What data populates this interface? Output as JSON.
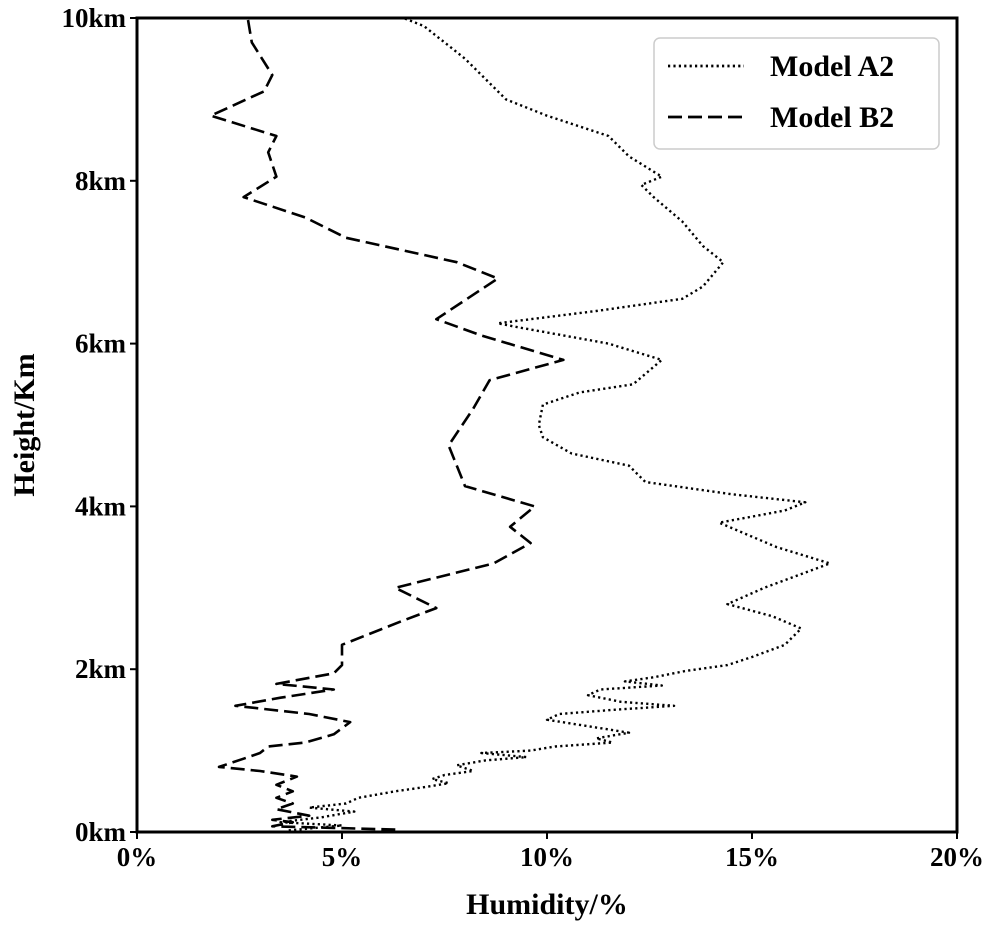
{
  "chart_data": {
    "type": "line",
    "title": "",
    "xlabel": "Humidity/%",
    "ylabel": "Height/Km",
    "xlim": [
      0,
      20
    ],
    "ylim": [
      0,
      10
    ],
    "x_ticks": [
      0,
      5,
      10,
      15,
      20
    ],
    "x_tick_labels": [
      "0%",
      "5%",
      "10%",
      "15%",
      "20%"
    ],
    "y_ticks": [
      0,
      2,
      4,
      6,
      8,
      10
    ],
    "y_tick_labels": [
      "0km",
      "2km",
      "4km",
      "6km",
      "8km",
      "10km"
    ],
    "grid": false,
    "legend_position": "top-right",
    "series": [
      {
        "name": "Model A2",
        "style": "dotted",
        "color": "#000000",
        "points": [
          [
            3.7,
            0.02
          ],
          [
            5.0,
            0.08
          ],
          [
            3.5,
            0.12
          ],
          [
            4.5,
            0.18
          ],
          [
            5.3,
            0.25
          ],
          [
            4.2,
            0.3
          ],
          [
            5.1,
            0.35
          ],
          [
            5.4,
            0.42
          ],
          [
            6.3,
            0.5
          ],
          [
            7.0,
            0.55
          ],
          [
            7.6,
            0.6
          ],
          [
            7.2,
            0.65
          ],
          [
            7.5,
            0.7
          ],
          [
            8.2,
            0.75
          ],
          [
            7.8,
            0.82
          ],
          [
            8.5,
            0.88
          ],
          [
            9.5,
            0.92
          ],
          [
            8.4,
            0.97
          ],
          [
            9.6,
            1.0
          ],
          [
            10.2,
            1.05
          ],
          [
            11.6,
            1.1
          ],
          [
            11.2,
            1.15
          ],
          [
            12.0,
            1.22
          ],
          [
            11.0,
            1.3
          ],
          [
            10.0,
            1.38
          ],
          [
            10.3,
            1.45
          ],
          [
            11.6,
            1.5
          ],
          [
            13.1,
            1.55
          ],
          [
            11.8,
            1.6
          ],
          [
            11.0,
            1.68
          ],
          [
            11.3,
            1.75
          ],
          [
            12.8,
            1.8
          ],
          [
            11.9,
            1.85
          ],
          [
            12.6,
            1.9
          ],
          [
            13.4,
            1.98
          ],
          [
            14.4,
            2.05
          ],
          [
            15.0,
            2.15
          ],
          [
            15.8,
            2.3
          ],
          [
            16.2,
            2.5
          ],
          [
            15.5,
            2.65
          ],
          [
            14.4,
            2.8
          ],
          [
            15.3,
            3.0
          ],
          [
            16.9,
            3.3
          ],
          [
            15.6,
            3.5
          ],
          [
            14.2,
            3.8
          ],
          [
            15.8,
            3.95
          ],
          [
            16.3,
            4.05
          ],
          [
            14.5,
            4.15
          ],
          [
            12.4,
            4.3
          ],
          [
            12.0,
            4.5
          ],
          [
            10.6,
            4.65
          ],
          [
            9.9,
            4.85
          ],
          [
            9.8,
            5.0
          ],
          [
            9.9,
            5.25
          ],
          [
            10.8,
            5.4
          ],
          [
            12.1,
            5.5
          ],
          [
            12.8,
            5.8
          ],
          [
            11.5,
            6.0
          ],
          [
            9.3,
            6.2
          ],
          [
            8.8,
            6.25
          ],
          [
            11.2,
            6.4
          ],
          [
            13.3,
            6.55
          ],
          [
            13.8,
            6.7
          ],
          [
            14.3,
            7.0
          ],
          [
            13.8,
            7.2
          ],
          [
            13.3,
            7.5
          ],
          [
            12.6,
            7.8
          ],
          [
            12.3,
            7.95
          ],
          [
            12.8,
            8.05
          ],
          [
            12.0,
            8.3
          ],
          [
            11.5,
            8.55
          ],
          [
            10.0,
            8.8
          ],
          [
            9.0,
            9.0
          ],
          [
            8.0,
            9.5
          ],
          [
            7.0,
            9.9
          ],
          [
            6.5,
            10.0
          ]
        ]
      },
      {
        "name": "Model B2",
        "style": "dashed",
        "color": "#000000",
        "points": [
          [
            6.3,
            0.03
          ],
          [
            4.8,
            0.05
          ],
          [
            3.3,
            0.07
          ],
          [
            3.8,
            0.12
          ],
          [
            3.3,
            0.15
          ],
          [
            4.2,
            0.2
          ],
          [
            3.4,
            0.28
          ],
          [
            3.8,
            0.35
          ],
          [
            3.4,
            0.42
          ],
          [
            3.8,
            0.5
          ],
          [
            3.4,
            0.58
          ],
          [
            3.9,
            0.68
          ],
          [
            3.0,
            0.75
          ],
          [
            2.0,
            0.8
          ],
          [
            2.6,
            0.9
          ],
          [
            3.0,
            0.97
          ],
          [
            3.2,
            1.05
          ],
          [
            4.1,
            1.1
          ],
          [
            4.8,
            1.2
          ],
          [
            5.2,
            1.35
          ],
          [
            4.2,
            1.45
          ],
          [
            2.4,
            1.55
          ],
          [
            3.5,
            1.65
          ],
          [
            4.8,
            1.75
          ],
          [
            3.4,
            1.82
          ],
          [
            4.8,
            1.95
          ],
          [
            5.0,
            2.05
          ],
          [
            5.0,
            2.3
          ],
          [
            6.5,
            2.6
          ],
          [
            7.3,
            2.75
          ],
          [
            6.3,
            3.0
          ],
          [
            8.7,
            3.3
          ],
          [
            9.6,
            3.55
          ],
          [
            9.1,
            3.75
          ],
          [
            9.7,
            4.0
          ],
          [
            8.0,
            4.25
          ],
          [
            7.6,
            4.75
          ],
          [
            8.2,
            5.2
          ],
          [
            8.6,
            5.55
          ],
          [
            10.4,
            5.8
          ],
          [
            8.4,
            6.1
          ],
          [
            7.3,
            6.3
          ],
          [
            8.8,
            6.8
          ],
          [
            7.8,
            7.0
          ],
          [
            5.1,
            7.3
          ],
          [
            4.1,
            7.55
          ],
          [
            2.6,
            7.8
          ],
          [
            3.4,
            8.05
          ],
          [
            3.2,
            8.35
          ],
          [
            3.4,
            8.55
          ],
          [
            1.8,
            8.8
          ],
          [
            3.1,
            9.1
          ],
          [
            3.3,
            9.3
          ],
          [
            2.8,
            9.7
          ],
          [
            2.7,
            10.0
          ]
        ]
      }
    ]
  }
}
